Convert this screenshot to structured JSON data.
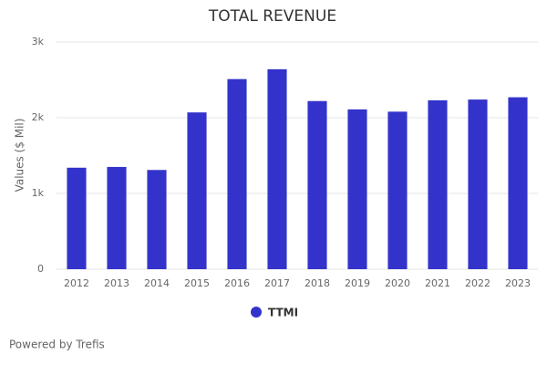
{
  "chart_data": {
    "type": "bar",
    "title": "TOTAL REVENUE",
    "y_label": "Values ($ Mil)",
    "categories": [
      "2012",
      "2013",
      "2014",
      "2015",
      "2016",
      "2017",
      "2018",
      "2019",
      "2020",
      "2021",
      "2022",
      "2023"
    ],
    "series": [
      {
        "name": "TTMI",
        "color": "#3333cc",
        "values": [
          1340,
          1350,
          1310,
          2070,
          2510,
          2640,
          2220,
          2110,
          2080,
          2230,
          2240,
          2270
        ]
      }
    ],
    "ylim": [
      0,
      3000
    ],
    "yticks": [
      0,
      {
        "value": 1000,
        "label": "1k"
      },
      {
        "value": 2000,
        "label": "2k"
      },
      {
        "value": 3000,
        "label": "3k"
      }
    ],
    "grid": true,
    "legend": "bottom",
    "credit": "Powered by Trefis"
  }
}
